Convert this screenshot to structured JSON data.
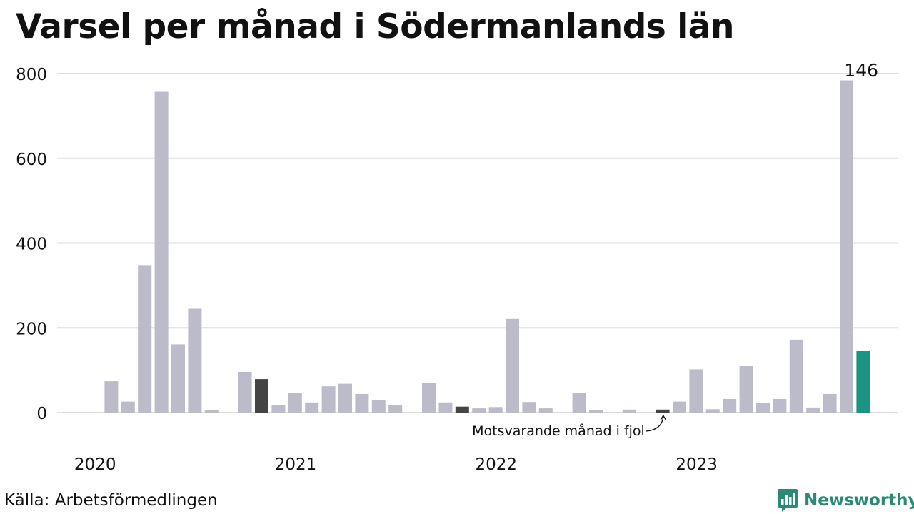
{
  "title": "Varsel per månad i Södermanlands län",
  "source": "Källa: Arbetsförmedlingen",
  "brand": {
    "name": "Newsworthy",
    "icon": "newsworthy-logo-icon",
    "color": "#2a8a76"
  },
  "colors": {
    "bar": "#bcbbc9",
    "previous_year": "#444444",
    "current": "#1b9484",
    "grid": "#dddddd"
  },
  "chart_data": {
    "type": "bar",
    "title": "Varsel per månad i Södermanlands län",
    "xlabel": "",
    "ylabel": "",
    "ylim": [
      0,
      800
    ],
    "yticks": [
      0,
      200,
      400,
      600,
      800
    ],
    "grid": true,
    "year_labels": [
      "2020",
      "2021",
      "2022",
      "2023"
    ],
    "categories": [
      "2020-01",
      "2020-02",
      "2020-03",
      "2020-04",
      "2020-05",
      "2020-06",
      "2020-07",
      "2020-08",
      "2020-09",
      "2020-10",
      "2020-11",
      "2020-12",
      "2021-01",
      "2021-02",
      "2021-03",
      "2021-04",
      "2021-05",
      "2021-06",
      "2021-07",
      "2021-08",
      "2021-09",
      "2021-10",
      "2021-11",
      "2021-12",
      "2022-01",
      "2022-02",
      "2022-03",
      "2022-04",
      "2022-05",
      "2022-06",
      "2022-07",
      "2022-08",
      "2022-09",
      "2022-10",
      "2022-11",
      "2022-12",
      "2023-01",
      "2023-02",
      "2023-03",
      "2023-04",
      "2023-05",
      "2023-06",
      "2023-07",
      "2023-08",
      "2023-09",
      "2023-10",
      "2023-11",
      "2023-12",
      "2024-01",
      "2024-02",
      "2024-03"
    ],
    "values": [
      0,
      74,
      26,
      348,
      757,
      161,
      245,
      6,
      0,
      96,
      79,
      17,
      46,
      24,
      62,
      68,
      44,
      29,
      18,
      0,
      69,
      24,
      14,
      10,
      13,
      221,
      25,
      10,
      0,
      47,
      6,
      0,
      7,
      0,
      7,
      26,
      102,
      8,
      32,
      110,
      22,
      32,
      172,
      12,
      44,
      784,
      146,
      0,
      0,
      0,
      0
    ],
    "previous_year_indices": [
      10,
      22,
      34
    ],
    "current_index": 46,
    "value_label": "146",
    "annotation": "Motsvarande månad i fjol"
  }
}
